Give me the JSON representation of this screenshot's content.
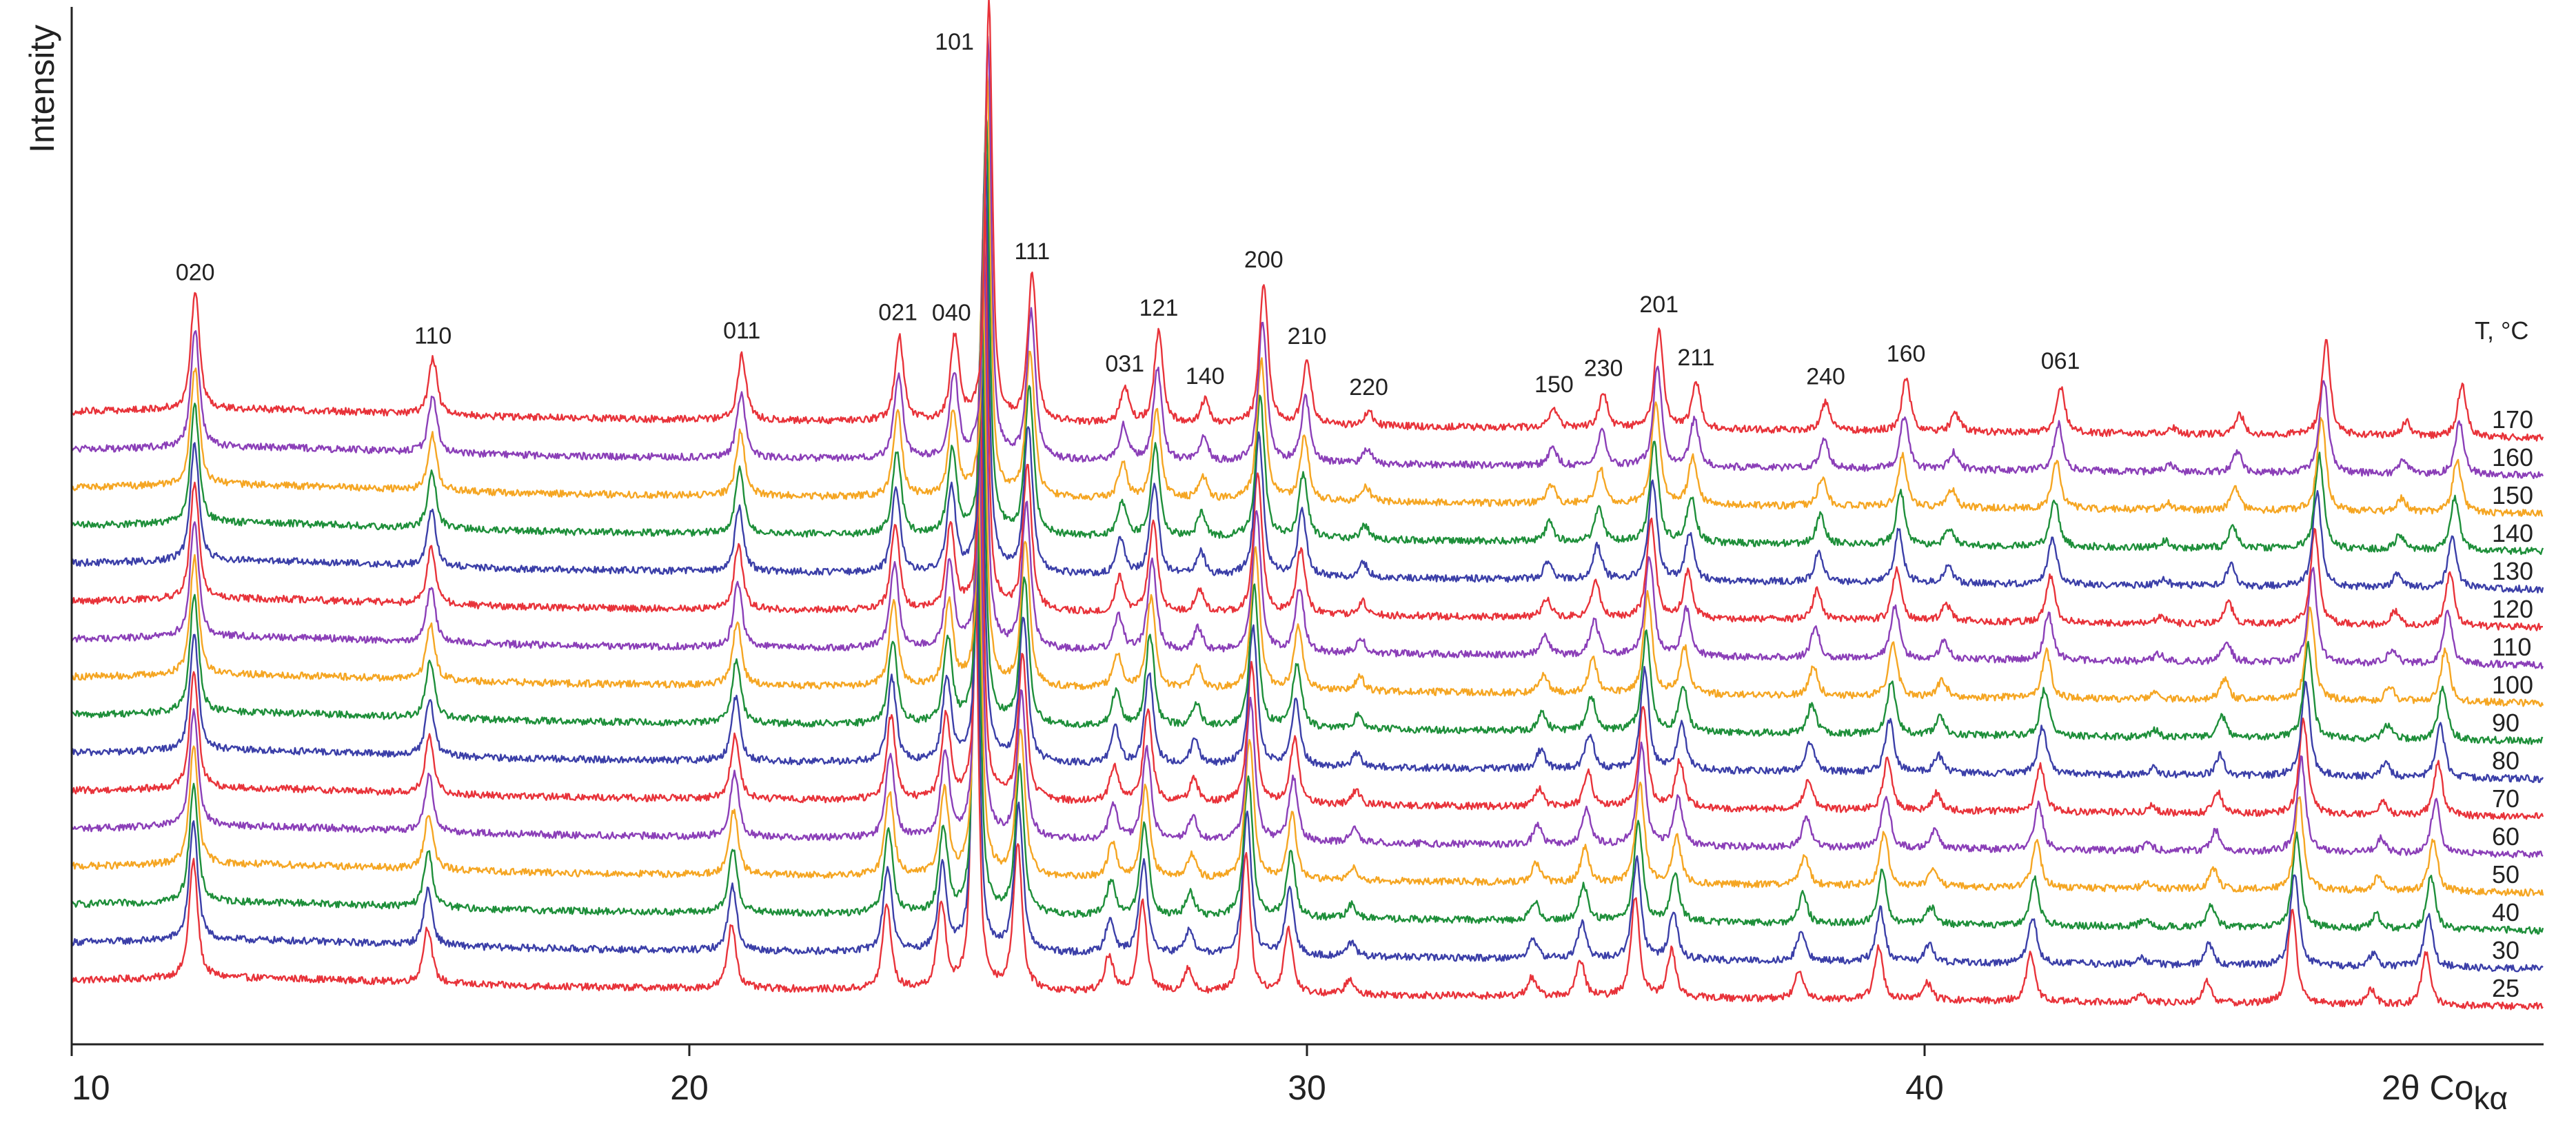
{
  "chart_data": {
    "type": "line",
    "title": "",
    "xlabel": "2θ Co",
    "xlabel_subscript": "kα",
    "ylabel": "Intensity",
    "xlim": [
      10,
      50
    ],
    "x_ticks": [
      10,
      20,
      30,
      40
    ],
    "y_ticks": [],
    "grid": false,
    "legend_title": "T, °C",
    "legend_placement": "right",
    "series": [
      {
        "name": "25",
        "temperature": 25,
        "color": "#e8333a"
      },
      {
        "name": "30",
        "temperature": 30,
        "color": "#3b3fa8"
      },
      {
        "name": "40",
        "temperature": 40,
        "color": "#1e8f3a"
      },
      {
        "name": "50",
        "temperature": 50,
        "color": "#f5a623"
      },
      {
        "name": "60",
        "temperature": 60,
        "color": "#8b3fb8"
      },
      {
        "name": "70",
        "temperature": 70,
        "color": "#e8333a"
      },
      {
        "name": "80",
        "temperature": 80,
        "color": "#3b3fa8"
      },
      {
        "name": "90",
        "temperature": 90,
        "color": "#1e8f3a"
      },
      {
        "name": "100",
        "temperature": 100,
        "color": "#f5a623"
      },
      {
        "name": "110",
        "temperature": 110,
        "color": "#8b3fb8"
      },
      {
        "name": "120",
        "temperature": 120,
        "color": "#e8333a"
      },
      {
        "name": "130",
        "temperature": 130,
        "color": "#3b3fa8"
      },
      {
        "name": "140",
        "temperature": 140,
        "color": "#1e8f3a"
      },
      {
        "name": "150",
        "temperature": 150,
        "color": "#f5a623"
      },
      {
        "name": "160",
        "temperature": 160,
        "color": "#8b3fb8"
      },
      {
        "name": "170",
        "temperature": 170,
        "color": "#e8333a"
      }
    ],
    "peaks": [
      {
        "label": "020",
        "x": 12.0,
        "height": 1.0
      },
      {
        "label": "110",
        "x": 15.85,
        "height": 0.48
      },
      {
        "label": "011",
        "x": 20.85,
        "height": 0.55
      },
      {
        "label": "021",
        "x": 23.4,
        "height": 0.72
      },
      {
        "label": "040",
        "x": 24.3,
        "height": 0.72
      },
      {
        "label": "101",
        "x": 24.85,
        "height": 3.6
      },
      {
        "label": "111",
        "x": 25.55,
        "height": 1.25
      },
      {
        "label": "031",
        "x": 27.05,
        "height": 0.3
      },
      {
        "label": "121",
        "x": 27.6,
        "height": 0.78
      },
      {
        "label": "140",
        "x": 28.35,
        "height": 0.2
      },
      {
        "label": "200",
        "x": 29.3,
        "height": 1.2
      },
      {
        "label": "210",
        "x": 30.0,
        "height": 0.55
      },
      {
        "label": "220",
        "x": 31.0,
        "height": 0.12
      },
      {
        "label": "150",
        "x": 34.0,
        "height": 0.16
      },
      {
        "label": "230",
        "x": 34.8,
        "height": 0.3
      },
      {
        "label": "201",
        "x": 35.7,
        "height": 0.85
      },
      {
        "label": "211",
        "x": 36.3,
        "height": 0.4
      },
      {
        "label": "240",
        "x": 38.4,
        "height": 0.25
      },
      {
        "label": "160",
        "x": 39.7,
        "height": 0.45
      },
      {
        "label": "061",
        "x": 42.2,
        "height": 0.4
      },
      {
        "label": "",
        "x": 40.5,
        "height": 0.15
      },
      {
        "label": "",
        "x": 44.0,
        "height": 0.06
      },
      {
        "label": "",
        "x": 45.1,
        "height": 0.18
      },
      {
        "label": "",
        "x": 46.5,
        "height": 0.8
      },
      {
        "label": "",
        "x": 47.8,
        "height": 0.12
      },
      {
        "label": "",
        "x": 48.7,
        "height": 0.45
      }
    ]
  }
}
